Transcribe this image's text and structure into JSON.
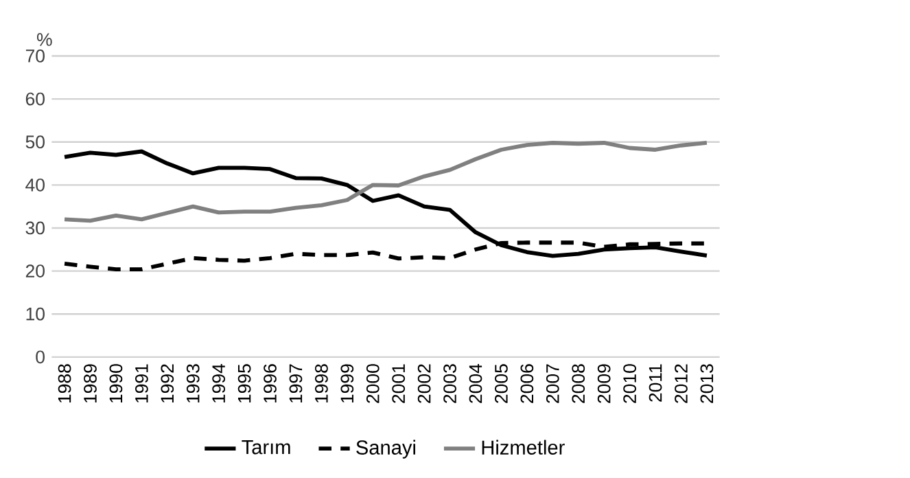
{
  "chart_data": {
    "type": "line",
    "ylabel": "%",
    "categories": [
      "1988",
      "1989",
      "1990",
      "1991",
      "1992",
      "1993",
      "1994",
      "1995",
      "1996",
      "1997",
      "1998",
      "1999",
      "2000",
      "2001",
      "2002",
      "2003",
      "2004",
      "2005",
      "2006",
      "2007",
      "2008",
      "2009",
      "2010",
      "2011",
      "2012",
      "2013"
    ],
    "series": [
      {
        "name": "Tarım",
        "color": "#000000",
        "line_style": "solid",
        "values": [
          46.5,
          47.5,
          47,
          47.8,
          45,
          42.7,
          44,
          44,
          43.7,
          41.6,
          41.5,
          40,
          36.3,
          37.6,
          35,
          34.2,
          29,
          26,
          24.4,
          23.5,
          24,
          25,
          25.3,
          25.5,
          24.5,
          23.6
        ]
      },
      {
        "name": "Sanayi",
        "color": "#000000",
        "line_style": "dashed",
        "values": [
          21.7,
          21,
          20.4,
          20.4,
          21.7,
          23,
          22.6,
          22.4,
          23,
          24,
          23.7,
          23.7,
          24.3,
          22.9,
          23.2,
          23,
          25,
          26.5,
          26.6,
          26.6,
          26.6,
          25.6,
          26.2,
          26.3,
          26.4,
          26.4
        ]
      },
      {
        "name": "Hizmetler",
        "color": "#808080",
        "line_style": "solid",
        "values": [
          32,
          31.7,
          32.9,
          32,
          33.5,
          35,
          33.6,
          33.8,
          33.8,
          34.7,
          35.3,
          36.5,
          40,
          39.9,
          42,
          43.5,
          46,
          48.2,
          49.3,
          49.8,
          49.6,
          49.8,
          48.6,
          48.2,
          49.2,
          49.8
        ]
      }
    ],
    "ylim": [
      0,
      70
    ],
    "yticks": [
      0,
      10,
      20,
      30,
      40,
      50,
      60,
      70
    ],
    "grid": "y",
    "legend": "bottom",
    "marker": "none"
  }
}
